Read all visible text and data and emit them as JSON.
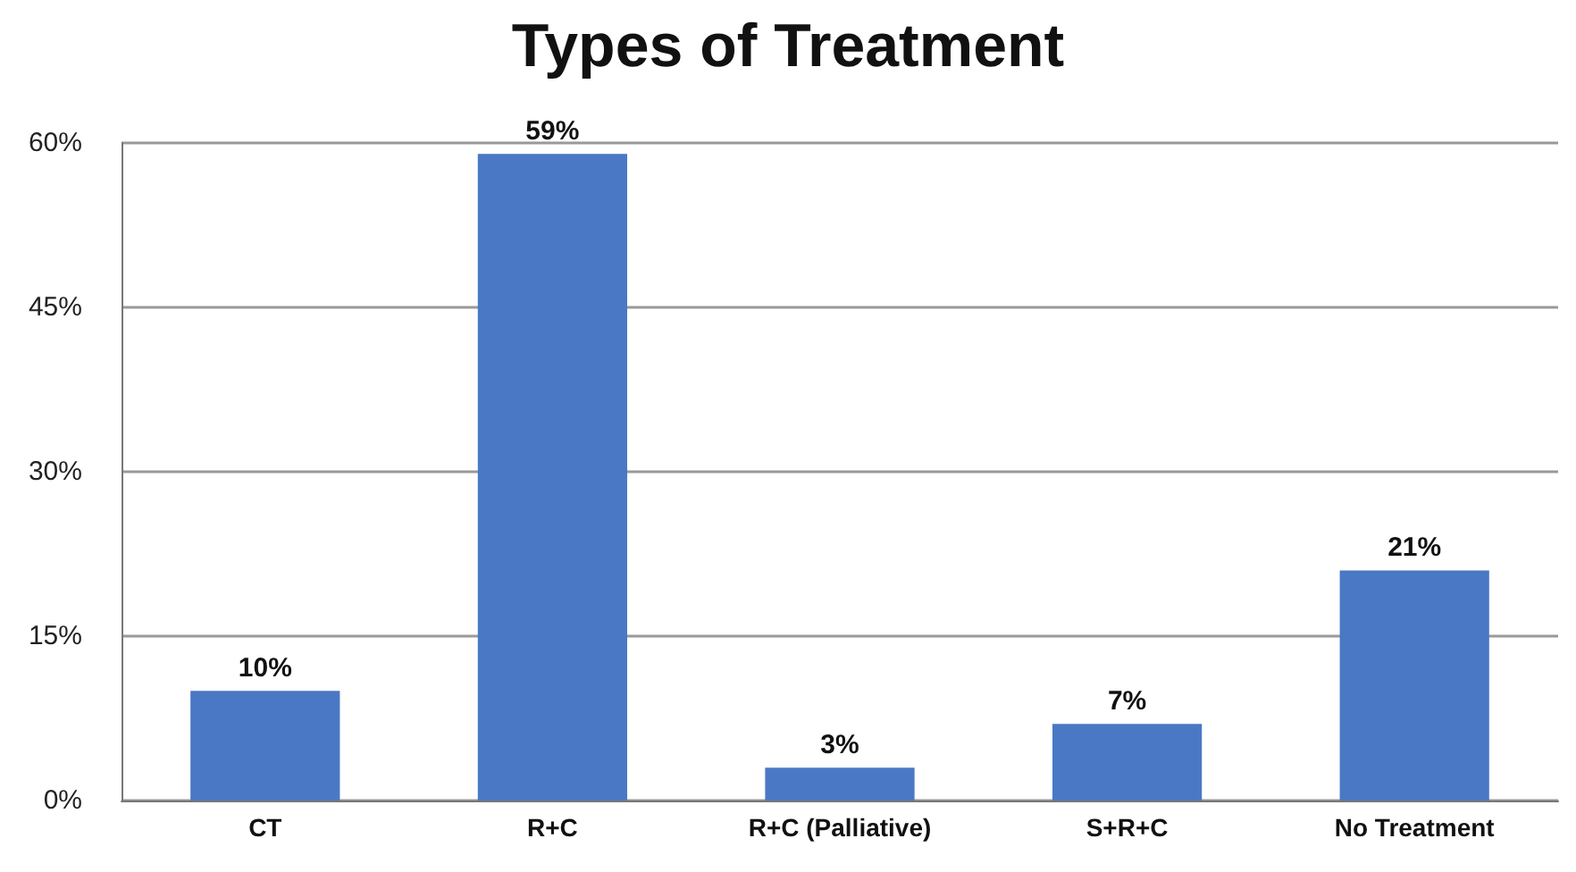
{
  "chart_data": {
    "type": "bar",
    "title": "Types of Treatment",
    "categories": [
      "CT",
      "R+C",
      "R+C (Palliative)",
      "S+R+C",
      "No Treatment"
    ],
    "values": [
      10,
      59,
      3,
      7,
      21
    ],
    "value_labels": [
      "10%",
      "59%",
      "3%",
      "7%",
      "21%"
    ],
    "color": "#4a78c4",
    "ylim": [
      0,
      60
    ],
    "yticks": [
      {
        "value": 0,
        "label": "0%"
      },
      {
        "value": 15,
        "label": "15%"
      },
      {
        "value": 30,
        "label": "30%"
      },
      {
        "value": 45,
        "label": "45%"
      },
      {
        "value": 60,
        "label": "60%"
      }
    ],
    "grid": "y"
  }
}
